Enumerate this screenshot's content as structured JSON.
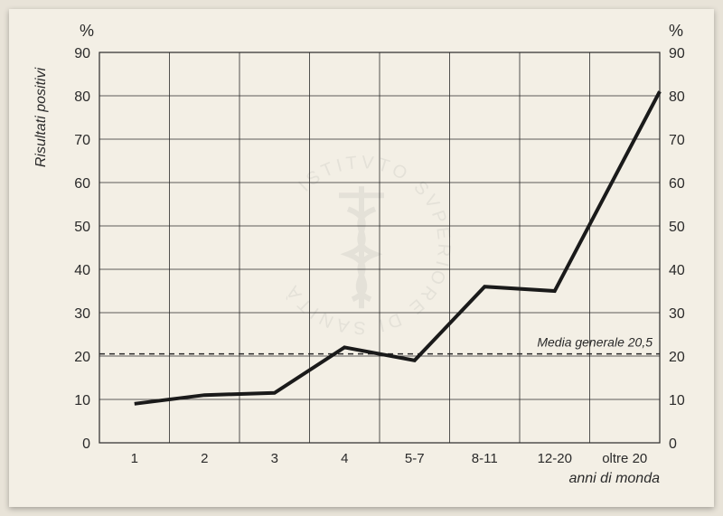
{
  "chart": {
    "type": "line",
    "background_color": "#f3efe5",
    "page_background": "#e8e3d8",
    "line_color": "#1a1a1a",
    "line_width": 4,
    "grid_color": "#2a2a2a",
    "unit_left": "%",
    "unit_right": "%",
    "ylabel": "Risultati positivi",
    "xlabel": "anni di monda",
    "reference": {
      "value": 20.5,
      "label": "Media generale 20,5"
    },
    "ylim": [
      0,
      90
    ],
    "ytick_step": 10,
    "categories": [
      "1",
      "2",
      "3",
      "4",
      "5-7",
      "8-11",
      "12-20",
      "oltre 20"
    ],
    "values": [
      9,
      11,
      11.5,
      22,
      19,
      36,
      35,
      81
    ]
  },
  "watermark": {
    "text": "ISTITVTO SVPERIORE DI SANITÀ",
    "color": "#b8b8b2"
  }
}
